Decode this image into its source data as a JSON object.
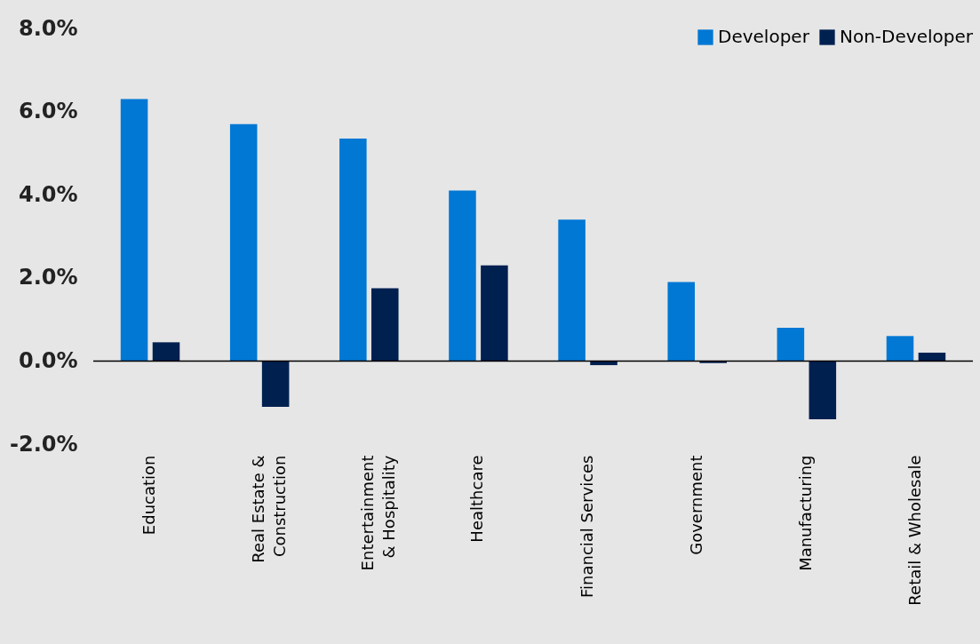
{
  "chart_data": {
    "type": "bar",
    "categories": [
      "Education",
      "Real Estate & Construction",
      "Entertainment & Hospitality",
      "Healthcare",
      "Financial Services",
      "Government",
      "Manufacturing",
      "Retail & Wholesale"
    ],
    "series": [
      {
        "name": "Developer",
        "color": "#0078d4",
        "values": [
          6.3,
          5.7,
          5.35,
          4.1,
          3.4,
          1.9,
          0.8,
          0.6
        ]
      },
      {
        "name": "Non-Developer",
        "color": "#002050",
        "values": [
          0.45,
          -1.1,
          1.75,
          2.3,
          -0.1,
          -0.05,
          -1.4,
          0.2
        ]
      }
    ],
    "ylim": [
      -2,
      8
    ],
    "yticks": [
      {
        "value": -2,
        "label": "-2.0%"
      },
      {
        "value": 0,
        "label": "0.0%"
      },
      {
        "value": 2,
        "label": "2.0%"
      },
      {
        "value": 4,
        "label": "4.0%"
      },
      {
        "value": 6,
        "label": "6.0%"
      },
      {
        "value": 8,
        "label": "8.0%"
      }
    ],
    "ref_lines": [
      {
        "axis": "y",
        "value": 0,
        "color": "#000000"
      }
    ],
    "grid": false,
    "legend": "top right"
  }
}
